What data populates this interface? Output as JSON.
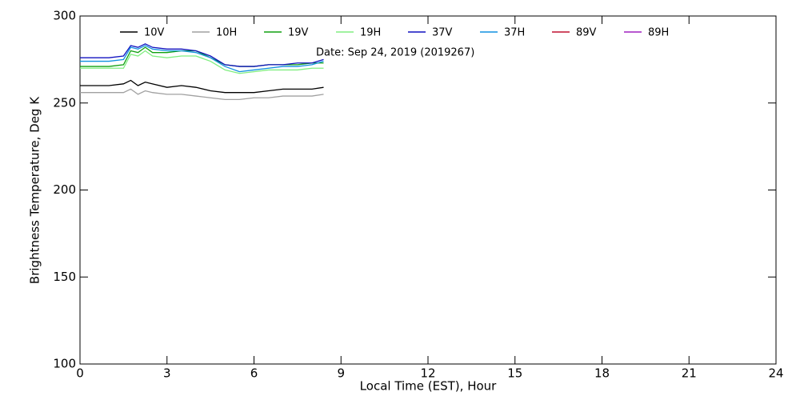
{
  "chart_data": {
    "type": "line",
    "xlabel": "Local Time (EST), Hour",
    "ylabel": "Brightness Temperature, Deg K",
    "annotation": "Date: Sep 24, 2019 (2019267)",
    "x": [
      0,
      0.5,
      1,
      1.5,
      1.75,
      2,
      2.25,
      2.5,
      3,
      3.5,
      4,
      4.5,
      5,
      5.5,
      6,
      6.5,
      7,
      7.5,
      8,
      8.4
    ],
    "series": [
      {
        "name": "10V",
        "color": "#000000",
        "values": [
          260,
          260,
          260,
          261,
          263,
          260,
          262,
          261,
          259,
          260,
          259,
          257,
          256,
          256,
          256,
          257,
          258,
          258,
          258,
          259
        ]
      },
      {
        "name": "10H",
        "color": "#a0a0a0",
        "values": [
          256,
          256,
          256,
          256,
          258,
          255,
          257,
          256,
          255,
          255,
          254,
          253,
          252,
          252,
          253,
          253,
          254,
          254,
          254,
          255
        ]
      },
      {
        "name": "19V",
        "color": "#10a010",
        "values": [
          271,
          271,
          271,
          272,
          280,
          279,
          282,
          279,
          279,
          280,
          280,
          276,
          272,
          271,
          271,
          272,
          272,
          272,
          273,
          273
        ]
      },
      {
        "name": "19H",
        "color": "#80ee80",
        "values": [
          270,
          270,
          270,
          270,
          278,
          277,
          280,
          277,
          276,
          277,
          277,
          274,
          269,
          267,
          268,
          269,
          269,
          269,
          270,
          270
        ]
      },
      {
        "name": "37V",
        "color": "#1010c0",
        "values": [
          276,
          276,
          276,
          277,
          283,
          282,
          284,
          282,
          281,
          281,
          280,
          277,
          272,
          271,
          271,
          272,
          272,
          273,
          273,
          275
        ]
      },
      {
        "name": "37H",
        "color": "#1090e0",
        "values": [
          274,
          274,
          274,
          275,
          282,
          281,
          283,
          281,
          280,
          280,
          279,
          276,
          271,
          268,
          269,
          270,
          271,
          271,
          272,
          274
        ]
      },
      {
        "name": "89V",
        "color": "#c01030",
        "values": [
          null,
          null,
          null,
          null,
          null,
          null,
          null,
          null,
          null,
          null,
          null,
          null,
          null,
          null,
          null,
          null,
          null,
          null,
          null,
          null
        ]
      },
      {
        "name": "89H",
        "color": "#a020c0",
        "values": [
          null,
          null,
          null,
          null,
          null,
          null,
          null,
          null,
          null,
          null,
          null,
          null,
          null,
          null,
          null,
          null,
          null,
          null,
          null,
          null
        ]
      }
    ],
    "xlim": [
      0,
      24
    ],
    "xticks": [
      0,
      3,
      6,
      9,
      12,
      15,
      18,
      21,
      24
    ],
    "ylim": [
      100,
      300
    ],
    "yticks": [
      100,
      150,
      200,
      250,
      300
    ],
    "grid": false
  }
}
